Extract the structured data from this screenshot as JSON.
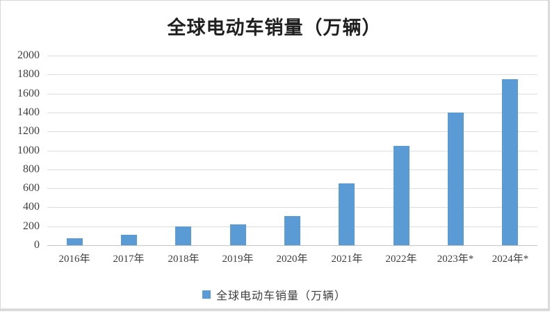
{
  "chart_data": {
    "type": "bar",
    "title": "全球电动车销量（万辆）",
    "categories": [
      "2016年",
      "2017年",
      "2018年",
      "2019年",
      "2020年",
      "2021年",
      "2022年",
      "2023年*",
      "2024年*"
    ],
    "values": [
      70,
      110,
      200,
      220,
      310,
      650,
      1050,
      1400,
      1750
    ],
    "series_name": "全球电动车销量（万辆）",
    "xlabel": "",
    "ylabel": "",
    "ylim": [
      0,
      2000
    ],
    "yticks": [
      0,
      200,
      400,
      600,
      800,
      1000,
      1200,
      1400,
      1600,
      1800,
      2000
    ],
    "grid": "horizontal",
    "legend_position": "bottom",
    "bar_color": "#5b9bd5",
    "gridline_color": "#dcdcdc",
    "axis_line_color": "#c3c3c3",
    "text_color": "#3f3f3f",
    "title_color": "#1f1f1f"
  }
}
